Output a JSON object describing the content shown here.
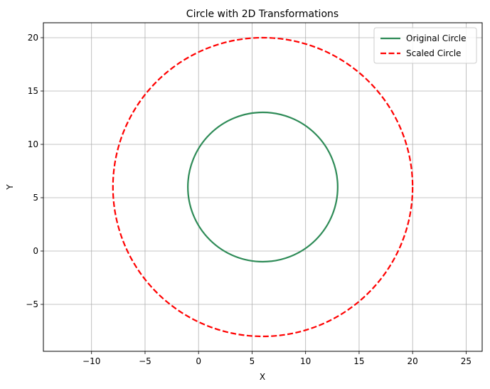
{
  "chart_data": {
    "type": "line",
    "title": "Circle with 2D Transformations",
    "xlabel": "X",
    "ylabel": "Y",
    "xlim": [
      -14.5,
      26.5
    ],
    "ylim": [
      -9.4,
      21.4
    ],
    "xticks": [
      -10,
      -5,
      0,
      5,
      10,
      15,
      20,
      25
    ],
    "yticks": [
      -5,
      0,
      5,
      10,
      15,
      20
    ],
    "grid": true,
    "aspect": "equal",
    "legend_position": "top-right",
    "series": [
      {
        "name": "Original Circle",
        "shape": "circle",
        "center": [
          6,
          6
        ],
        "radius": 7,
        "color": "#2e8b57",
        "linestyle": "solid"
      },
      {
        "name": "Scaled Circle",
        "shape": "circle",
        "center": [
          6,
          6
        ],
        "radius": 14,
        "color": "#ff0000",
        "linestyle": "dashed"
      }
    ]
  }
}
